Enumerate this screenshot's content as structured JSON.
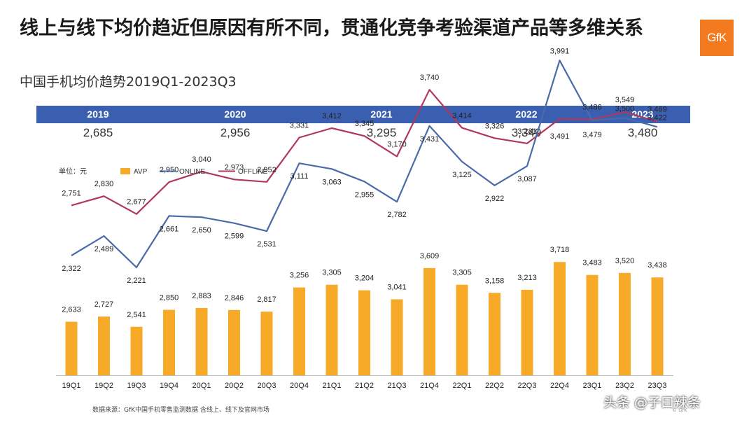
{
  "header": {
    "title": "线上与线下均价趋近但原因有所不同，贯通化竞争考验渠道产品等多维关系",
    "subtitle": "中国手机均价趋势2019Q1-2023Q3",
    "logo": "GfK"
  },
  "years": [
    {
      "label": "2019",
      "value": "2,685"
    },
    {
      "label": "2020",
      "value": "2,956"
    },
    {
      "label": "2021",
      "value": "3,295"
    },
    {
      "label": "2022",
      "value": "3,349"
    },
    {
      "label": "2023",
      "value": "3,480"
    }
  ],
  "chart_data": {
    "type": "bar+line",
    "unit_label": "单位：元",
    "categories": [
      "19Q1",
      "19Q2",
      "19Q3",
      "19Q4",
      "20Q1",
      "20Q2",
      "20Q3",
      "20Q4",
      "21Q1",
      "21Q2",
      "21Q3",
      "21Q4",
      "22Q1",
      "22Q2",
      "22Q3",
      "22Q4",
      "23Q1",
      "23Q2",
      "23Q3"
    ],
    "series": [
      {
        "name": "AVP",
        "type": "bar",
        "color": "#f7a928",
        "values": [
          2633,
          2727,
          2541,
          2850,
          2883,
          2846,
          2817,
          3256,
          3305,
          3204,
          3041,
          3609,
          3305,
          3158,
          3213,
          3718,
          3483,
          3520,
          3438
        ]
      },
      {
        "name": "ONLINE",
        "type": "line",
        "color": "#4a6aa8",
        "values": [
          2322,
          2489,
          2221,
          2661,
          2650,
          2599,
          2531,
          3111,
          3063,
          2955,
          2782,
          3431,
          3125,
          2922,
          3087,
          3991,
          3479,
          3500,
          3422
        ]
      },
      {
        "name": "OFFLINE",
        "type": "line",
        "color": "#b0385a",
        "values": [
          2751,
          2830,
          2677,
          2950,
          3040,
          2973,
          2952,
          3331,
          3412,
          3345,
          3170,
          3740,
          3414,
          3326,
          3281,
          3491,
          3486,
          3549,
          3469
        ]
      }
    ]
  },
  "source": "数据来源：GfK中国手机零售监测数据 含线上、线下及官网市场",
  "watermark": "头条 @子曰辣条",
  "copyright": "© GfK"
}
